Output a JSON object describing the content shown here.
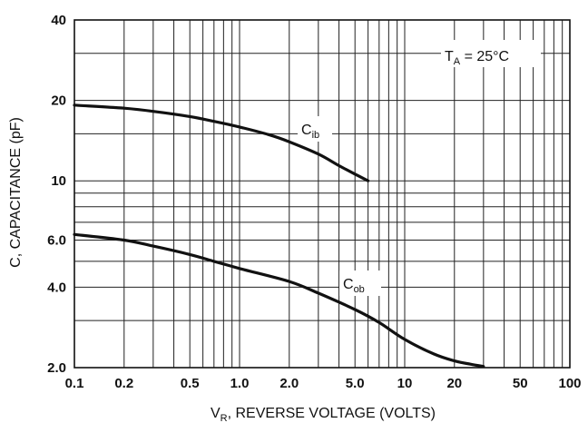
{
  "chart_data": {
    "type": "line",
    "x_scale": "log",
    "y_scale": "log",
    "xlim": [
      0.1,
      100
    ],
    "ylim": [
      2.0,
      40
    ],
    "grid": true,
    "xlabel": {
      "main": "V",
      "sub": "R",
      "rest": ", REVERSE VOLTAGE (VOLTS)"
    },
    "ylabel": "C, CAPACITANCE (pF)",
    "x_ticks": [
      {
        "value": 0.1,
        "label": "0.1"
      },
      {
        "value": 0.2,
        "label": "0.2"
      },
      {
        "value": 0.5,
        "label": "0.5"
      },
      {
        "value": 1.0,
        "label": "1.0"
      },
      {
        "value": 2.0,
        "label": "2.0"
      },
      {
        "value": 5.0,
        "label": "5.0"
      },
      {
        "value": 10,
        "label": "10"
      },
      {
        "value": 20,
        "label": "20"
      },
      {
        "value": 50,
        "label": "50"
      },
      {
        "value": 100,
        "label": "100"
      }
    ],
    "y_ticks": [
      {
        "value": 2.0,
        "label": "2.0"
      },
      {
        "value": 4.0,
        "label": "4.0"
      },
      {
        "value": 6.0,
        "label": "6.0"
      },
      {
        "value": 10,
        "label": "10"
      },
      {
        "value": 20,
        "label": "20"
      },
      {
        "value": 40,
        "label": "40"
      }
    ],
    "condition": {
      "main": "T",
      "sub": "A",
      "rest": " = 25°C"
    },
    "series": [
      {
        "name": {
          "main": "C",
          "sub": "ib"
        },
        "x": [
          0.1,
          0.2,
          0.3,
          0.5,
          0.7,
          1.0,
          1.5,
          2.0,
          3.0,
          4.0,
          5.0,
          6.0
        ],
        "y": [
          19.2,
          18.7,
          18.2,
          17.4,
          16.7,
          15.9,
          14.9,
          14.0,
          12.6,
          11.4,
          10.6,
          10.0
        ]
      },
      {
        "name": {
          "main": "C",
          "sub": "ob"
        },
        "x": [
          0.1,
          0.2,
          0.3,
          0.5,
          0.7,
          1.0,
          2.0,
          3.0,
          5.0,
          7.0,
          10,
          15,
          20,
          25,
          30
        ],
        "y": [
          6.3,
          6.0,
          5.7,
          5.3,
          5.0,
          4.7,
          4.2,
          3.8,
          3.3,
          2.95,
          2.55,
          2.25,
          2.12,
          2.06,
          2.02
        ]
      }
    ],
    "colors": {
      "line": "#111111",
      "grid": "#222222",
      "background": "#ffffff"
    }
  }
}
